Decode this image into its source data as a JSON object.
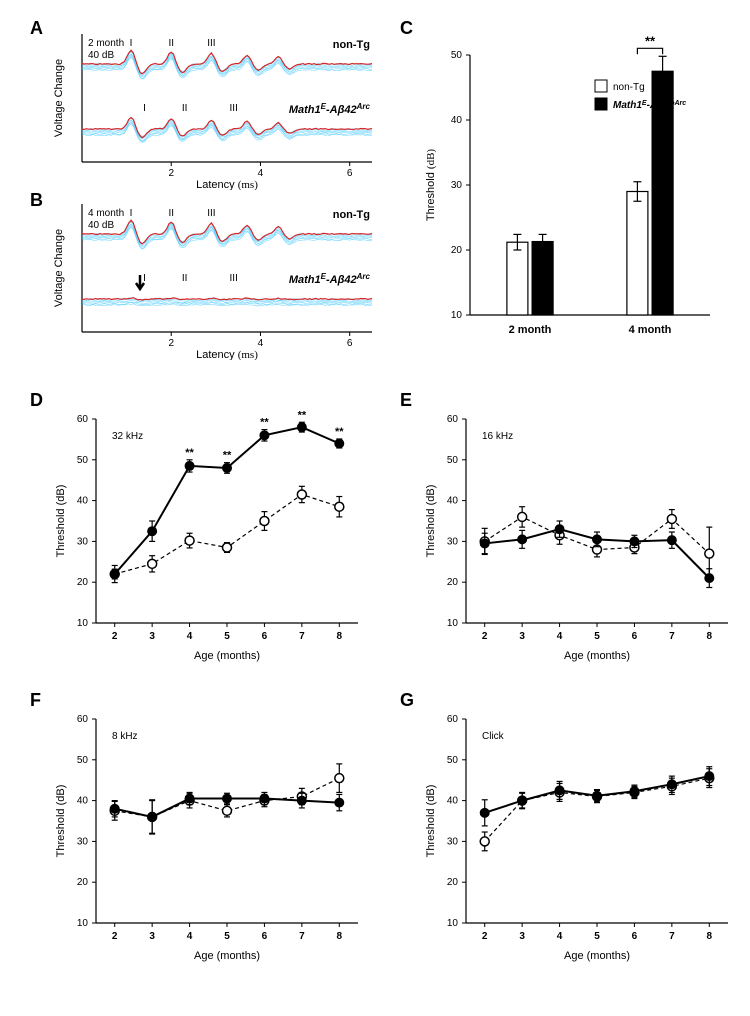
{
  "labels": {
    "A": "A",
    "B": "B",
    "C": "C",
    "D": "D",
    "E": "E",
    "F": "F",
    "G": "G"
  },
  "panelA": {
    "annot_top": "2 month",
    "annot_db": "40 dB",
    "trace1_label": "non-Tg",
    "trace2_label_prefix": "Math1",
    "trace2_label_sup1": "E",
    "trace2_label_mid": "-Aβ42",
    "trace2_label_sup2": "Arc",
    "wave_labels": [
      "I",
      "II",
      "III"
    ],
    "xlabel_prefix": "Latency ",
    "xlabel_unit": "(ms)",
    "ylabel": "Voltage Change",
    "xticks": [
      2,
      4,
      6
    ],
    "xlim": [
      0,
      6.5
    ]
  },
  "panelB": {
    "annot_top": "4 month",
    "annot_db": "40 dB",
    "trace1_label": "non-Tg",
    "trace2_label_prefix": "Math1",
    "trace2_label_sup1": "E",
    "trace2_label_mid": "-Aβ42",
    "trace2_label_sup2": "Arc",
    "wave_labels": [
      "I",
      "II",
      "III"
    ],
    "xlabel_prefix": "Latency ",
    "xlabel_unit": "(ms)",
    "ylabel": "Voltage Change",
    "xticks": [
      2,
      4,
      6
    ],
    "xlim": [
      0,
      6.5
    ]
  },
  "panelC": {
    "ylabel_prefix": "Threshold ",
    "ylabel_unit": "(dB)",
    "ylim": [
      10,
      50
    ],
    "yticks": [
      10,
      20,
      30,
      40,
      50
    ],
    "categories": [
      "2 month",
      "4 month"
    ],
    "legend": {
      "nonTg": "non-Tg",
      "tg_prefix": "Math1",
      "tg_sup1": "E",
      "tg_mid": "-Aβ42",
      "tg_sup2": "Arc"
    },
    "bars": [
      {
        "group": 0,
        "series": "nonTg",
        "value": 21.2,
        "err": 1.2,
        "color": "#ffffff"
      },
      {
        "group": 0,
        "series": "tg",
        "value": 21.3,
        "err": 1.1,
        "color": "#000000"
      },
      {
        "group": 1,
        "series": "nonTg",
        "value": 29.0,
        "err": 1.5,
        "color": "#ffffff"
      },
      {
        "group": 1,
        "series": "tg",
        "value": 47.5,
        "err": 2.3,
        "color": "#000000"
      }
    ],
    "sig_label": "**",
    "bar_width": 0.35
  },
  "lineTemplate": {
    "ylabel": "Threshold (dB)",
    "xlabel": "Age (months)",
    "ylim": [
      10,
      60
    ],
    "yticks": [
      10,
      20,
      30,
      40,
      50,
      60
    ],
    "xlim": [
      1.5,
      8.5
    ],
    "xticks": [
      2,
      3,
      4,
      5,
      6,
      7,
      8
    ]
  },
  "panelD": {
    "title": "32 kHz",
    "tg": {
      "x": [
        2,
        3,
        4,
        5,
        6,
        7,
        8
      ],
      "y": [
        22,
        32.5,
        48.5,
        48,
        56,
        58,
        54
      ],
      "err": [
        1.2,
        2.5,
        1.5,
        1.3,
        1.4,
        1.2,
        1.1
      ]
    },
    "nonTg": {
      "x": [
        2,
        3,
        4,
        5,
        6,
        7,
        8
      ],
      "y": [
        22,
        24.5,
        30.2,
        28.5,
        35,
        41.5,
        38.5
      ],
      "err": [
        2.1,
        2.0,
        1.8,
        1.2,
        2.3,
        2.0,
        2.5
      ]
    },
    "sig_x": [
      4,
      5,
      6,
      7,
      8
    ],
    "sig_label": "**"
  },
  "panelE": {
    "title": "16 kHz",
    "tg": {
      "x": [
        2,
        3,
        4,
        5,
        6,
        7,
        8
      ],
      "y": [
        29.5,
        30.5,
        33,
        30.5,
        30,
        30.3,
        21
      ],
      "err": [
        2.5,
        2.2,
        2.0,
        1.8,
        1.5,
        2.0,
        2.3
      ]
    },
    "nonTg": {
      "x": [
        2,
        3,
        4,
        5,
        6,
        7,
        8
      ],
      "y": [
        30,
        36,
        31.5,
        28,
        28.5,
        35.5,
        27
      ],
      "err": [
        3.2,
        2.5,
        2.2,
        1.8,
        1.5,
        2.3,
        6.5
      ]
    }
  },
  "panelF": {
    "title": "8 kHz",
    "tg": {
      "x": [
        2,
        3,
        4,
        5,
        6,
        7,
        8
      ],
      "y": [
        38,
        36,
        40.5,
        40.5,
        40.5,
        40,
        39.5
      ],
      "err": [
        2.0,
        4.0,
        1.5,
        1.3,
        1.5,
        1.8,
        2.0
      ]
    },
    "nonTg": {
      "x": [
        2,
        3,
        4,
        5,
        6,
        7,
        8
      ],
      "y": [
        37.5,
        36,
        40,
        37.5,
        40,
        41,
        45.5
      ],
      "err": [
        2.3,
        4.2,
        1.8,
        1.5,
        1.5,
        2.0,
        3.5
      ]
    }
  },
  "panelG": {
    "title": "Click",
    "tg": {
      "x": [
        2,
        3,
        4,
        5,
        6,
        7,
        8
      ],
      "y": [
        37,
        40,
        42.5,
        41.2,
        42.3,
        44,
        46
      ],
      "err": [
        3.2,
        1.8,
        2.2,
        1.5,
        1.5,
        2.0,
        2.3
      ]
    },
    "nonTg": {
      "x": [
        2,
        3,
        4,
        5,
        6,
        7,
        8
      ],
      "y": [
        30,
        40,
        42,
        41,
        42,
        43.5,
        45.5
      ],
      "err": [
        2.3,
        2.0,
        2.2,
        1.5,
        1.5,
        2.0,
        2.3
      ]
    }
  }
}
